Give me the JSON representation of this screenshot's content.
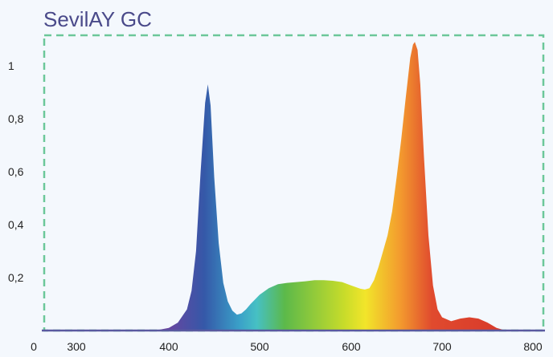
{
  "chart_data": {
    "type": "area",
    "title": "SevilAY GC",
    "xlabel": "",
    "ylabel": "",
    "xlim": [
      0,
      800
    ],
    "ylim": [
      0,
      1.1
    ],
    "x_ticks": [
      {
        "value": 0,
        "label": "0"
      },
      {
        "value": 300,
        "label": "300"
      },
      {
        "value": 400,
        "label": "400"
      },
      {
        "value": 500,
        "label": "500"
      },
      {
        "value": 600,
        "label": "600"
      },
      {
        "value": 700,
        "label": "700"
      },
      {
        "value": 800,
        "label": "800"
      }
    ],
    "y_ticks": [
      {
        "value": 0.2,
        "label": "0,2"
      },
      {
        "value": 0.4,
        "label": "0,4"
      },
      {
        "value": 0.6,
        "label": "0,6"
      },
      {
        "value": 0.8,
        "label": "0,8"
      },
      {
        "value": 1.0,
        "label": "1"
      }
    ],
    "grid": false,
    "colors": {
      "title": "#4a4a8a",
      "axis_line": "#5a5aa0",
      "frame": "#6cc79a",
      "tick_label": "#222222",
      "spectrum": [
        "#7a3f9e",
        "#3558a8",
        "#3aa0c8",
        "#46c0c4",
        "#5cb94a",
        "#c8dc2a",
        "#f2e52a",
        "#f39a2e",
        "#e04a2e",
        "#d8392a"
      ]
    },
    "series": [
      {
        "x": [
          385,
          400,
          410,
          420,
          425,
          430,
          435,
          440,
          443,
          446,
          450,
          455,
          460,
          465,
          470,
          475,
          480,
          485,
          490,
          500,
          510,
          520,
          530,
          540,
          550,
          560,
          570,
          580,
          590,
          600,
          610,
          615,
          620,
          625,
          630,
          635,
          640,
          645,
          650,
          655,
          660,
          665,
          668,
          670,
          673,
          676,
          680,
          685,
          690,
          695,
          700,
          710,
          720,
          730,
          740,
          750,
          760,
          770
        ],
        "y": [
          0.0,
          0.01,
          0.03,
          0.08,
          0.15,
          0.3,
          0.6,
          0.86,
          0.93,
          0.85,
          0.58,
          0.33,
          0.18,
          0.11,
          0.075,
          0.06,
          0.065,
          0.08,
          0.1,
          0.135,
          0.16,
          0.175,
          0.18,
          0.183,
          0.186,
          0.19,
          0.19,
          0.188,
          0.183,
          0.17,
          0.158,
          0.155,
          0.16,
          0.19,
          0.24,
          0.3,
          0.36,
          0.45,
          0.58,
          0.72,
          0.88,
          1.03,
          1.08,
          1.09,
          1.06,
          0.93,
          0.66,
          0.36,
          0.17,
          0.08,
          0.05,
          0.035,
          0.045,
          0.05,
          0.045,
          0.03,
          0.01,
          0.0
        ]
      }
    ]
  }
}
